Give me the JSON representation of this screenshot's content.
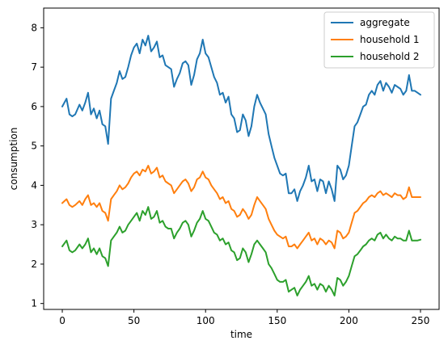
{
  "chart_data": {
    "type": "line",
    "title": "",
    "xlabel": "time",
    "ylabel": "consumption",
    "xlim": [
      -13,
      263
    ],
    "ylim": [
      0.85,
      8.5
    ],
    "xticks": [
      0,
      50,
      100,
      150,
      200,
      250
    ],
    "yticks": [
      1,
      2,
      3,
      4,
      5,
      6,
      7,
      8
    ],
    "grid": false,
    "legend_position": "top-right",
    "series": [
      {
        "name": "aggregate",
        "color": "#1f77b4",
        "x": [
          0,
          3,
          5,
          7,
          9,
          12,
          14,
          16,
          18,
          20,
          22,
          24,
          26,
          28,
          30,
          32,
          34,
          36,
          38,
          40,
          42,
          44,
          46,
          48,
          50,
          52,
          54,
          56,
          58,
          60,
          62,
          64,
          66,
          68,
          70,
          72,
          74,
          76,
          78,
          80,
          82,
          84,
          86,
          88,
          90,
          92,
          94,
          96,
          98,
          100,
          102,
          104,
          106,
          108,
          110,
          112,
          114,
          116,
          118,
          120,
          122,
          124,
          126,
          128,
          130,
          132,
          134,
          136,
          138,
          140,
          142,
          144,
          146,
          148,
          150,
          152,
          154,
          156,
          158,
          160,
          162,
          164,
          166,
          168,
          170,
          172,
          174,
          176,
          178,
          180,
          182,
          184,
          186,
          188,
          190,
          192,
          194,
          196,
          198,
          200,
          202,
          204,
          206,
          208,
          210,
          212,
          214,
          216,
          218,
          220,
          222,
          224,
          226,
          228,
          230,
          232,
          234,
          236,
          238,
          240,
          242,
          244,
          246,
          248,
          250
        ],
        "y": [
          6.0,
          6.2,
          5.8,
          5.75,
          5.8,
          6.05,
          5.9,
          6.1,
          6.35,
          5.8,
          5.95,
          5.7,
          5.9,
          5.55,
          5.5,
          5.05,
          6.2,
          6.4,
          6.6,
          6.9,
          6.7,
          6.75,
          7.0,
          7.3,
          7.5,
          7.6,
          7.35,
          7.7,
          7.55,
          7.8,
          7.4,
          7.5,
          7.65,
          7.25,
          7.3,
          7.05,
          7.0,
          6.95,
          6.5,
          6.7,
          6.85,
          7.1,
          7.15,
          7.05,
          6.55,
          6.8,
          7.2,
          7.35,
          7.7,
          7.35,
          7.25,
          7.0,
          6.75,
          6.6,
          6.3,
          6.35,
          6.1,
          6.25,
          5.8,
          5.7,
          5.35,
          5.4,
          5.8,
          5.65,
          5.25,
          5.5,
          6.0,
          6.3,
          6.1,
          5.95,
          5.8,
          5.3,
          5.0,
          4.7,
          4.5,
          4.3,
          4.25,
          4.3,
          3.8,
          3.8,
          3.9,
          3.6,
          3.85,
          4.0,
          4.2,
          4.5,
          4.1,
          4.15,
          3.85,
          4.15,
          4.1,
          3.8,
          4.1,
          3.9,
          3.6,
          4.5,
          4.4,
          4.15,
          4.25,
          4.5,
          5.0,
          5.5,
          5.6,
          5.8,
          6.0,
          6.05,
          6.3,
          6.4,
          6.3,
          6.55,
          6.65,
          6.4,
          6.6,
          6.5,
          6.35,
          6.55,
          6.5,
          6.45,
          6.3,
          6.4,
          6.8,
          6.4,
          6.4,
          6.35,
          6.3
        ]
      },
      {
        "name": "household 1",
        "color": "#ff7f0e",
        "x": [
          0,
          3,
          5,
          7,
          9,
          12,
          14,
          16,
          18,
          20,
          22,
          24,
          26,
          28,
          30,
          32,
          34,
          36,
          38,
          40,
          42,
          44,
          46,
          48,
          50,
          52,
          54,
          56,
          58,
          60,
          62,
          64,
          66,
          68,
          70,
          72,
          74,
          76,
          78,
          80,
          82,
          84,
          86,
          88,
          90,
          92,
          94,
          96,
          98,
          100,
          102,
          104,
          106,
          108,
          110,
          112,
          114,
          116,
          118,
          120,
          122,
          124,
          126,
          128,
          130,
          132,
          134,
          136,
          138,
          140,
          142,
          144,
          146,
          148,
          150,
          152,
          154,
          156,
          158,
          160,
          162,
          164,
          166,
          168,
          170,
          172,
          174,
          176,
          178,
          180,
          182,
          184,
          186,
          188,
          190,
          192,
          194,
          196,
          198,
          200,
          202,
          204,
          206,
          208,
          210,
          212,
          214,
          216,
          218,
          220,
          222,
          224,
          226,
          228,
          230,
          232,
          234,
          236,
          238,
          240,
          242,
          244,
          246,
          248,
          250
        ],
        "y": [
          3.55,
          3.65,
          3.5,
          3.45,
          3.5,
          3.6,
          3.5,
          3.65,
          3.75,
          3.5,
          3.55,
          3.45,
          3.55,
          3.35,
          3.3,
          3.1,
          3.65,
          3.75,
          3.85,
          4.0,
          3.9,
          3.95,
          4.05,
          4.2,
          4.3,
          4.35,
          4.25,
          4.4,
          4.35,
          4.5,
          4.3,
          4.35,
          4.45,
          4.2,
          4.25,
          4.1,
          4.05,
          4.0,
          3.8,
          3.9,
          4.0,
          4.1,
          4.15,
          4.05,
          3.85,
          3.95,
          4.15,
          4.2,
          4.35,
          4.2,
          4.15,
          4.0,
          3.9,
          3.8,
          3.65,
          3.7,
          3.55,
          3.6,
          3.4,
          3.35,
          3.2,
          3.25,
          3.4,
          3.3,
          3.15,
          3.25,
          3.5,
          3.7,
          3.6,
          3.5,
          3.4,
          3.15,
          3.0,
          2.85,
          2.75,
          2.7,
          2.65,
          2.7,
          2.45,
          2.45,
          2.5,
          2.4,
          2.5,
          2.6,
          2.7,
          2.8,
          2.6,
          2.65,
          2.5,
          2.65,
          2.6,
          2.5,
          2.6,
          2.55,
          2.4,
          2.85,
          2.8,
          2.65,
          2.7,
          2.8,
          3.05,
          3.3,
          3.35,
          3.45,
          3.55,
          3.6,
          3.7,
          3.75,
          3.7,
          3.8,
          3.85,
          3.75,
          3.8,
          3.75,
          3.7,
          3.8,
          3.75,
          3.75,
          3.65,
          3.7,
          3.95,
          3.7,
          3.7,
          3.7,
          3.7
        ]
      },
      {
        "name": "household 2",
        "color": "#2ca02c",
        "x": [
          0,
          3,
          5,
          7,
          9,
          12,
          14,
          16,
          18,
          20,
          22,
          24,
          26,
          28,
          30,
          32,
          34,
          36,
          38,
          40,
          42,
          44,
          46,
          48,
          50,
          52,
          54,
          56,
          58,
          60,
          62,
          64,
          66,
          68,
          70,
          72,
          74,
          76,
          78,
          80,
          82,
          84,
          86,
          88,
          90,
          92,
          94,
          96,
          98,
          100,
          102,
          104,
          106,
          108,
          110,
          112,
          114,
          116,
          118,
          120,
          122,
          124,
          126,
          128,
          130,
          132,
          134,
          136,
          138,
          140,
          142,
          144,
          146,
          148,
          150,
          152,
          154,
          156,
          158,
          160,
          162,
          164,
          166,
          168,
          170,
          172,
          174,
          176,
          178,
          180,
          182,
          184,
          186,
          188,
          190,
          192,
          194,
          196,
          198,
          200,
          202,
          204,
          206,
          208,
          210,
          212,
          214,
          216,
          218,
          220,
          222,
          224,
          226,
          228,
          230,
          232,
          234,
          236,
          238,
          240,
          242,
          244,
          246,
          248,
          250
        ],
        "y": [
          2.45,
          2.6,
          2.35,
          2.3,
          2.35,
          2.5,
          2.4,
          2.5,
          2.65,
          2.3,
          2.4,
          2.25,
          2.4,
          2.2,
          2.15,
          1.95,
          2.6,
          2.7,
          2.8,
          2.95,
          2.8,
          2.85,
          3.0,
          3.1,
          3.2,
          3.3,
          3.1,
          3.35,
          3.25,
          3.45,
          3.15,
          3.2,
          3.35,
          3.05,
          3.1,
          2.95,
          2.9,
          2.9,
          2.65,
          2.8,
          2.9,
          3.05,
          3.1,
          3.0,
          2.7,
          2.85,
          3.05,
          3.15,
          3.35,
          3.15,
          3.1,
          2.95,
          2.8,
          2.75,
          2.6,
          2.65,
          2.5,
          2.55,
          2.35,
          2.3,
          2.1,
          2.15,
          2.4,
          2.3,
          2.05,
          2.25,
          2.5,
          2.6,
          2.5,
          2.4,
          2.3,
          2.0,
          1.9,
          1.75,
          1.6,
          1.55,
          1.55,
          1.6,
          1.3,
          1.35,
          1.4,
          1.2,
          1.35,
          1.45,
          1.55,
          1.7,
          1.45,
          1.5,
          1.35,
          1.5,
          1.45,
          1.3,
          1.45,
          1.35,
          1.2,
          1.65,
          1.6,
          1.45,
          1.55,
          1.7,
          1.95,
          2.2,
          2.25,
          2.35,
          2.45,
          2.5,
          2.6,
          2.65,
          2.6,
          2.75,
          2.8,
          2.65,
          2.75,
          2.65,
          2.6,
          2.7,
          2.65,
          2.65,
          2.6,
          2.6,
          2.85,
          2.6,
          2.6,
          2.6,
          2.62
        ]
      }
    ]
  }
}
